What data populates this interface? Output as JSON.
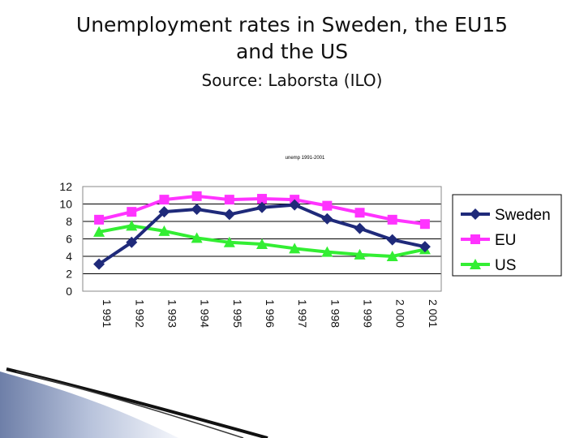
{
  "slide": {
    "title_line1": "Unemployment rates in Sweden, the EU15",
    "title_line2": "and the US",
    "source": "Source: Laborsta (ILO)"
  },
  "colors": {
    "sweden": "#1f2a7a",
    "eu": "#ff33ff",
    "us": "#33ee33",
    "grid": "#000000",
    "plot_border": "#888888"
  },
  "chart_data": {
    "type": "line",
    "title": "unemp 1991-2001",
    "x": [
      "1 991",
      "1 992",
      "1 993",
      "1 994",
      "1 995",
      "1 996",
      "1 997",
      "1 998",
      "1 999",
      "2 000",
      "2 001"
    ],
    "series": [
      {
        "name": "Sweden",
        "marker": "diamond",
        "values": [
          3.1,
          5.6,
          9.1,
          9.4,
          8.8,
          9.6,
          9.9,
          8.3,
          7.2,
          5.9,
          5.1
        ]
      },
      {
        "name": "EU",
        "marker": "square",
        "values": [
          8.2,
          9.1,
          10.5,
          10.9,
          10.5,
          10.6,
          10.5,
          9.8,
          9.0,
          8.2,
          7.7
        ]
      },
      {
        "name": "US",
        "marker": "triangle",
        "values": [
          6.8,
          7.5,
          6.9,
          6.1,
          5.6,
          5.4,
          4.9,
          4.5,
          4.2,
          4.0,
          4.8
        ]
      }
    ],
    "y_ticks": [
      "0",
      "2",
      "4",
      "6",
      "8",
      "10",
      "12"
    ],
    "ylim": [
      0,
      12
    ],
    "grid": true,
    "legend": "right"
  }
}
